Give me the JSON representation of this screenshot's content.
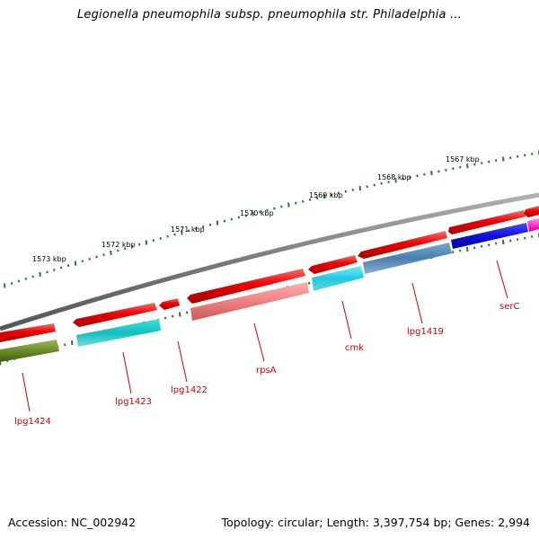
{
  "title": "Legionella pneumophila subsp. pneumophila str. Philadelphia ...",
  "footer": {
    "accession": "Accession: NC_002942",
    "topology": "Topology: circular; Length: 3,397,754 bp; Genes: 2,994"
  },
  "scale_labels": [
    "1567 kbp",
    "1568 kbp",
    "1569 kbp",
    "1570 kbp",
    "1571 kbp",
    "1572 kbp",
    "1573 kbp"
  ],
  "gene_labels": [
    "serC",
    "lpg1419",
    "cmk",
    "rpsA",
    "lpg1422",
    "lpg1423",
    "lpg1424"
  ],
  "colors": {
    "backbone": "#7a7a7a",
    "forward_strand": "#ee0000",
    "tick": "#2a7a2a",
    "label": "#cc0000",
    "cyan": "#22c8e0",
    "steel_blue": "#4a7fb0",
    "blue": "#1010dd",
    "salmon": "#f08080",
    "olive": "#6b8a2a",
    "magenta": "#ff33cc"
  }
}
